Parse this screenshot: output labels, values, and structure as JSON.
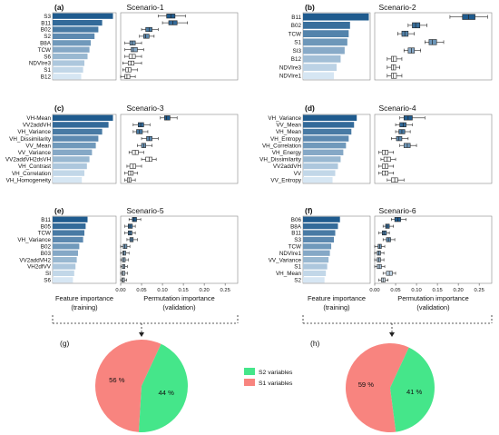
{
  "figure": {
    "panels": [
      {
        "letter": "(a)",
        "title": "Scenario-1",
        "features": [
          "S3",
          "B11",
          "B02",
          "S2",
          "B8A",
          "TCW",
          "S6",
          "NDVIre3",
          "S1",
          "B12"
        ],
        "importance": [
          0.95,
          0.78,
          0.72,
          0.66,
          0.6,
          0.58,
          0.55,
          0.5,
          0.48,
          0.45
        ],
        "perm": [
          {
            "min": 0.09,
            "q1": 0.11,
            "med": 0.12,
            "q3": 0.13,
            "max": 0.155,
            "filled": true
          },
          {
            "min": 0.1,
            "q1": 0.115,
            "med": 0.125,
            "q3": 0.135,
            "max": 0.16,
            "filled": true
          },
          {
            "min": 0.05,
            "q1": 0.06,
            "med": 0.068,
            "q3": 0.075,
            "max": 0.09,
            "filled": true
          },
          {
            "min": 0.045,
            "q1": 0.055,
            "med": 0.06,
            "q3": 0.068,
            "max": 0.08,
            "filled": true
          },
          {
            "min": 0.01,
            "q1": 0.022,
            "med": 0.028,
            "q3": 0.035,
            "max": 0.05,
            "filled": true
          },
          {
            "min": 0.01,
            "q1": 0.025,
            "med": 0.03,
            "q3": 0.04,
            "max": 0.055,
            "filled": true
          },
          {
            "min": 0.01,
            "q1": 0.02,
            "med": 0.028,
            "q3": 0.035,
            "max": 0.05,
            "filled": false
          },
          {
            "min": 0.005,
            "q1": 0.018,
            "med": 0.025,
            "q3": 0.032,
            "max": 0.05,
            "filled": false
          },
          {
            "min": 0.005,
            "q1": 0.012,
            "med": 0.018,
            "q3": 0.025,
            "max": 0.04,
            "filled": false
          },
          {
            "min": 0.0,
            "q1": 0.01,
            "med": 0.015,
            "q3": 0.022,
            "max": 0.035,
            "filled": false
          }
        ]
      },
      {
        "letter": "(b)",
        "title": "Scenario-2",
        "features": [
          "B11",
          "B02",
          "TCW",
          "S1",
          "SI3",
          "B12",
          "NDVIre3",
          "NDVIre1"
        ],
        "importance": [
          0.98,
          0.7,
          0.68,
          0.66,
          0.62,
          0.56,
          0.5,
          0.46
        ],
        "perm": [
          {
            "min": 0.18,
            "q1": 0.21,
            "med": 0.225,
            "q3": 0.24,
            "max": 0.27,
            "filled": true
          },
          {
            "min": 0.08,
            "q1": 0.09,
            "med": 0.098,
            "q3": 0.108,
            "max": 0.125,
            "filled": true
          },
          {
            "min": 0.055,
            "q1": 0.065,
            "med": 0.072,
            "q3": 0.08,
            "max": 0.095,
            "filled": true
          },
          {
            "min": 0.12,
            "q1": 0.13,
            "med": 0.138,
            "q3": 0.148,
            "max": 0.165,
            "filled": true
          },
          {
            "min": 0.07,
            "q1": 0.08,
            "med": 0.088,
            "q3": 0.095,
            "max": 0.11,
            "filled": true
          },
          {
            "min": 0.03,
            "q1": 0.04,
            "med": 0.045,
            "q3": 0.052,
            "max": 0.065,
            "filled": false
          },
          {
            "min": 0.03,
            "q1": 0.04,
            "med": 0.045,
            "q3": 0.05,
            "max": 0.06,
            "filled": false
          },
          {
            "min": 0.03,
            "q1": 0.04,
            "med": 0.045,
            "q3": 0.052,
            "max": 0.065,
            "filled": false
          }
        ]
      },
      {
        "letter": "(c)",
        "title": "Scenario-3",
        "features": [
          "VH-Mean",
          "VV2addVH",
          "VH_Variance",
          "VH_Dissimilarity",
          "VV_Mean",
          "VV_Variance",
          "VV2addVH2dsVH",
          "VH_Contrast",
          "VH_Correlation",
          "VH_Homogeneity"
        ],
        "importance": [
          0.95,
          0.88,
          0.78,
          0.72,
          0.68,
          0.62,
          0.58,
          0.54,
          0.5,
          0.46
        ],
        "perm": [
          {
            "min": 0.095,
            "q1": 0.105,
            "med": 0.11,
            "q3": 0.118,
            "max": 0.135,
            "filled": true
          },
          {
            "min": 0.03,
            "q1": 0.042,
            "med": 0.048,
            "q3": 0.055,
            "max": 0.07,
            "filled": true
          },
          {
            "min": 0.03,
            "q1": 0.038,
            "med": 0.045,
            "q3": 0.052,
            "max": 0.065,
            "filled": true
          },
          {
            "min": 0.05,
            "q1": 0.062,
            "med": 0.068,
            "q3": 0.075,
            "max": 0.09,
            "filled": true
          },
          {
            "min": 0.04,
            "q1": 0.05,
            "med": 0.055,
            "q3": 0.06,
            "max": 0.075,
            "filled": true
          },
          {
            "min": 0.02,
            "q1": 0.028,
            "med": 0.035,
            "q3": 0.042,
            "max": 0.055,
            "filled": false
          },
          {
            "min": 0.05,
            "q1": 0.06,
            "med": 0.068,
            "q3": 0.075,
            "max": 0.085,
            "filled": false
          },
          {
            "min": 0.015,
            "q1": 0.022,
            "med": 0.03,
            "q3": 0.036,
            "max": 0.05,
            "filled": false
          },
          {
            "min": 0.01,
            "q1": 0.018,
            "med": 0.024,
            "q3": 0.03,
            "max": 0.04,
            "filled": false
          },
          {
            "min": 0.01,
            "q1": 0.016,
            "med": 0.02,
            "q3": 0.025,
            "max": 0.035,
            "filled": false
          }
        ]
      },
      {
        "letter": "(d)",
        "title": "Scenario-4",
        "features": [
          "VH_Variance",
          "VV_Mean",
          "VH_Mean",
          "VH_Entropy",
          "VH_Correlation",
          "VH_Energy",
          "VH_Dissimilarity",
          "VV2addVH",
          "VV",
          "VV_Entropy"
        ],
        "importance": [
          0.8,
          0.76,
          0.72,
          0.68,
          0.64,
          0.6,
          0.56,
          0.52,
          0.48,
          0.44
        ],
        "perm": [
          {
            "min": 0.06,
            "q1": 0.07,
            "med": 0.08,
            "q3": 0.09,
            "max": 0.12,
            "filled": true
          },
          {
            "min": 0.05,
            "q1": 0.06,
            "med": 0.068,
            "q3": 0.075,
            "max": 0.09,
            "filled": true
          },
          {
            "min": 0.05,
            "q1": 0.058,
            "med": 0.065,
            "q3": 0.072,
            "max": 0.085,
            "filled": true
          },
          {
            "min": 0.04,
            "q1": 0.052,
            "med": 0.058,
            "q3": 0.065,
            "max": 0.08,
            "filled": true
          },
          {
            "min": 0.06,
            "q1": 0.07,
            "med": 0.078,
            "q3": 0.085,
            "max": 0.1,
            "filled": true
          },
          {
            "min": 0.01,
            "q1": 0.018,
            "med": 0.025,
            "q3": 0.032,
            "max": 0.045,
            "filled": false
          },
          {
            "min": 0.015,
            "q1": 0.022,
            "med": 0.03,
            "q3": 0.038,
            "max": 0.05,
            "filled": false
          },
          {
            "min": 0.01,
            "q1": 0.018,
            "med": 0.025,
            "q3": 0.032,
            "max": 0.045,
            "filled": false
          },
          {
            "min": 0.01,
            "q1": 0.018,
            "med": 0.025,
            "q3": 0.032,
            "max": 0.045,
            "filled": false
          },
          {
            "min": 0.03,
            "q1": 0.04,
            "med": 0.048,
            "q3": 0.055,
            "max": 0.07,
            "filled": false
          }
        ]
      },
      {
        "letter": "(e)",
        "title": "Scenario-5",
        "features": [
          "B11",
          "B05",
          "TCW",
          "VH_Variance",
          "B02",
          "B03",
          "VV2addVH2",
          "VH2dfVV",
          "SI",
          "S6"
        ],
        "importance": [
          0.55,
          0.52,
          0.5,
          0.48,
          0.42,
          0.4,
          0.38,
          0.36,
          0.34,
          0.32
        ],
        "perm": [
          {
            "min": 0.02,
            "q1": 0.028,
            "med": 0.032,
            "q3": 0.038,
            "max": 0.048,
            "filled": true
          },
          {
            "min": 0.01,
            "q1": 0.018,
            "med": 0.022,
            "q3": 0.028,
            "max": 0.035,
            "filled": true
          },
          {
            "min": 0.01,
            "q1": 0.018,
            "med": 0.022,
            "q3": 0.027,
            "max": 0.035,
            "filled": true
          },
          {
            "min": 0.015,
            "q1": 0.022,
            "med": 0.026,
            "q3": 0.03,
            "max": 0.04,
            "filled": true
          },
          {
            "min": 0.0,
            "q1": 0.006,
            "med": 0.01,
            "q3": 0.015,
            "max": 0.022,
            "filled": true
          },
          {
            "min": 0.0,
            "q1": 0.005,
            "med": 0.008,
            "q3": 0.012,
            "max": 0.02,
            "filled": true
          },
          {
            "min": 0.0,
            "q1": 0.004,
            "med": 0.007,
            "q3": 0.011,
            "max": 0.018,
            "filled": true
          },
          {
            "min": 0.0,
            "q1": 0.004,
            "med": 0.007,
            "q3": 0.01,
            "max": 0.016,
            "filled": true
          },
          {
            "min": 0.0,
            "q1": 0.003,
            "med": 0.006,
            "q3": 0.01,
            "max": 0.016,
            "filled": true
          },
          {
            "min": 0.0,
            "q1": 0.003,
            "med": 0.006,
            "q3": 0.009,
            "max": 0.014,
            "filled": true
          }
        ]
      },
      {
        "letter": "(f)",
        "title": "Scenario-6",
        "features": [
          "B06",
          "B8A",
          "B11",
          "S3",
          "TCW",
          "NDVIre1",
          "VV_Variance",
          "S1",
          "VH_Mean",
          "S2"
        ],
        "importance": [
          0.55,
          0.52,
          0.48,
          0.46,
          0.42,
          0.4,
          0.38,
          0.36,
          0.34,
          0.32
        ],
        "perm": [
          {
            "min": 0.04,
            "q1": 0.048,
            "med": 0.055,
            "q3": 0.062,
            "max": 0.075,
            "filled": true
          },
          {
            "min": 0.02,
            "q1": 0.026,
            "med": 0.03,
            "q3": 0.035,
            "max": 0.045,
            "filled": true
          },
          {
            "min": 0.01,
            "q1": 0.018,
            "med": 0.022,
            "q3": 0.028,
            "max": 0.035,
            "filled": true
          },
          {
            "min": 0.02,
            "q1": 0.028,
            "med": 0.033,
            "q3": 0.038,
            "max": 0.048,
            "filled": true
          },
          {
            "min": 0.0,
            "q1": 0.008,
            "med": 0.012,
            "q3": 0.016,
            "max": 0.024,
            "filled": true
          },
          {
            "min": 0.0,
            "q1": 0.006,
            "med": 0.01,
            "q3": 0.014,
            "max": 0.022,
            "filled": true
          },
          {
            "min": 0.0,
            "q1": 0.006,
            "med": 0.01,
            "q3": 0.014,
            "max": 0.022,
            "filled": true
          },
          {
            "min": 0.0,
            "q1": 0.006,
            "med": 0.011,
            "q3": 0.016,
            "max": 0.024,
            "filled": true
          },
          {
            "min": 0.02,
            "q1": 0.028,
            "med": 0.035,
            "q3": 0.042,
            "max": 0.05,
            "filled": true
          },
          {
            "min": 0.01,
            "q1": 0.016,
            "med": 0.02,
            "q3": 0.025,
            "max": 0.032,
            "filled": true
          }
        ]
      }
    ],
    "perm_ticks": [
      "0.00",
      "0.05",
      "0.10",
      "0.15",
      "0.20",
      "0.25"
    ],
    "perm_xlim": [
      0,
      0.28
    ],
    "xlabels": {
      "feature_line1": "Feature importance",
      "feature_line2": "(training)",
      "perm_line1": "Permutation importance",
      "perm_line2": "(validation)"
    },
    "pies": [
      {
        "letter": "(g)",
        "slices": [
          {
            "label": "56 %",
            "value": 56,
            "color": "#f8847f"
          },
          {
            "label": "44 %",
            "value": 44,
            "color": "#45e68a"
          }
        ]
      },
      {
        "letter": "(h)",
        "slices": [
          {
            "label": "59 %",
            "value": 59,
            "color": "#f8847f"
          },
          {
            "label": "41 %",
            "value": 41,
            "color": "#45e68a"
          }
        ]
      }
    ],
    "legend": [
      {
        "label": "S2 variables",
        "color": "#45e68a"
      },
      {
        "label": "S1 variables",
        "color": "#f8847f"
      }
    ],
    "colors": {
      "bar_dark": "#1f5b8e",
      "bar_light": "#d6e6f3",
      "box_edge": "#222222"
    }
  }
}
